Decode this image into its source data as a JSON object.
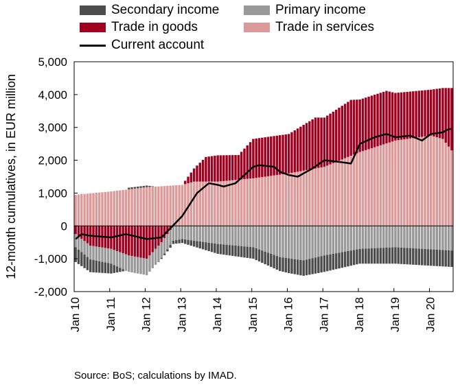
{
  "legend": {
    "secondary_income": {
      "label": "Secondary income",
      "color": "#4d4d4d"
    },
    "primary_income": {
      "label": "Primary income",
      "color": "#999999"
    },
    "trade_goods": {
      "label": "Trade in goods",
      "color": "#a00020"
    },
    "trade_services": {
      "label": "Trade in services",
      "color": "#dc9a9a"
    },
    "current_account": {
      "label": "Current account",
      "color": "#000000"
    }
  },
  "source": "Source: BoS; calculations by IMAD.",
  "chart_data": {
    "type": "bar",
    "stacked": true,
    "title": "",
    "xlabel": "",
    "ylabel": "12-month cumulatives, in EUR million",
    "ylim": [
      -2000,
      5000
    ],
    "yticks": [
      -2000,
      -1000,
      0,
      1000,
      2000,
      3000,
      4000,
      5000
    ],
    "ytick_labels": [
      "-2,000",
      "-1,000",
      "0",
      "1,000",
      "2,000",
      "3,000",
      "4,000",
      "5,000"
    ],
    "x_tick_labels": [
      "Jan 10",
      "Jan 11",
      "Jan 12",
      "Jan 13",
      "Jan 14",
      "Jan 15",
      "Jan 16",
      "Jan 17",
      "Jan 18",
      "Jan 19",
      "Jan 20"
    ],
    "grid": false,
    "legend_position": "top",
    "frequency": "monthly",
    "start": "2010-01",
    "end": "2020-08",
    "anchors": {
      "trade_services": [
        [
          "2010-01",
          950
        ],
        [
          "2011-01",
          1050
        ],
        [
          "2012-01",
          1180
        ],
        [
          "2013-01",
          1250
        ],
        [
          "2013-05",
          1350
        ],
        [
          "2014-01",
          1350
        ],
        [
          "2015-01",
          1450
        ],
        [
          "2016-01",
          1600
        ],
        [
          "2017-01",
          1800
        ],
        [
          "2018-01",
          2250
        ],
        [
          "2019-01",
          2600
        ],
        [
          "2020-01",
          2750
        ],
        [
          "2020-05",
          2650
        ],
        [
          "2020-08",
          2300
        ]
      ],
      "trade_goods": [
        [
          "2010-01",
          -250
        ],
        [
          "2010-06",
          -600
        ],
        [
          "2011-01",
          -700
        ],
        [
          "2011-07",
          -900
        ],
        [
          "2012-01",
          -1000
        ],
        [
          "2012-06",
          -500
        ],
        [
          "2012-10",
          0
        ],
        [
          "2013-01",
          0
        ],
        [
          "2013-05",
          400
        ],
        [
          "2013-09",
          750
        ],
        [
          "2014-01",
          800
        ],
        [
          "2014-08",
          750
        ],
        [
          "2015-01",
          1200
        ],
        [
          "2015-06",
          1200
        ],
        [
          "2016-01",
          1200
        ],
        [
          "2016-10",
          1550
        ],
        [
          "2017-01",
          1500
        ],
        [
          "2017-10",
          1700
        ],
        [
          "2018-01",
          1600
        ],
        [
          "2018-10",
          1600
        ],
        [
          "2019-01",
          1450
        ],
        [
          "2020-01",
          1400
        ],
        [
          "2020-05",
          1550
        ],
        [
          "2020-08",
          1900
        ]
      ],
      "primary_income": [
        [
          "2010-01",
          -400
        ],
        [
          "2011-01",
          -450
        ],
        [
          "2011-07",
          -500
        ],
        [
          "2012-01",
          -500
        ],
        [
          "2012-10",
          -450
        ],
        [
          "2013-01",
          -400
        ],
        [
          "2013-09",
          -500
        ],
        [
          "2014-01",
          -550
        ],
        [
          "2015-01",
          -650
        ],
        [
          "2015-10",
          -950
        ],
        [
          "2016-06",
          -1050
        ],
        [
          "2017-01",
          -900
        ],
        [
          "2018-01",
          -700
        ],
        [
          "2019-01",
          -650
        ],
        [
          "2020-08",
          -750
        ]
      ],
      "secondary_income": [
        [
          "2010-01",
          -450
        ],
        [
          "2011-01",
          -300
        ],
        [
          "2011-07",
          50
        ],
        [
          "2012-01",
          50
        ],
        [
          "2012-10",
          -100
        ],
        [
          "2013-01",
          -120
        ],
        [
          "2014-01",
          -300
        ],
        [
          "2015-01",
          -350
        ],
        [
          "2016-01",
          -450
        ],
        [
          "2017-01",
          -500
        ],
        [
          "2018-01",
          -450
        ],
        [
          "2019-01",
          -500
        ],
        [
          "2020-01",
          -500
        ],
        [
          "2020-08",
          -500
        ]
      ],
      "current_account": [
        [
          "2010-01",
          -400
        ],
        [
          "2010-03",
          -250
        ],
        [
          "2010-06",
          -300
        ],
        [
          "2011-01",
          -350
        ],
        [
          "2011-06",
          -250
        ],
        [
          "2012-01",
          -400
        ],
        [
          "2012-06",
          -350
        ],
        [
          "2013-01",
          300
        ],
        [
          "2013-06",
          1000
        ],
        [
          "2013-10",
          1300
        ],
        [
          "2014-01",
          1250
        ],
        [
          "2014-03",
          1200
        ],
        [
          "2014-07",
          1300
        ],
        [
          "2015-01",
          1800
        ],
        [
          "2015-03",
          1850
        ],
        [
          "2015-08",
          1800
        ],
        [
          "2015-10",
          1650
        ],
        [
          "2016-01",
          1550
        ],
        [
          "2016-04",
          1500
        ],
        [
          "2016-09",
          1750
        ],
        [
          "2017-01",
          2000
        ],
        [
          "2017-06",
          1950
        ],
        [
          "2017-10",
          1900
        ],
        [
          "2018-01",
          2500
        ],
        [
          "2018-06",
          2700
        ],
        [
          "2018-10",
          2800
        ],
        [
          "2019-01",
          2700
        ],
        [
          "2019-06",
          2750
        ],
        [
          "2019-10",
          2600
        ],
        [
          "2020-01",
          2800
        ],
        [
          "2020-05",
          2850
        ],
        [
          "2020-07",
          2950
        ],
        [
          "2020-08",
          2950
        ]
      ]
    }
  }
}
